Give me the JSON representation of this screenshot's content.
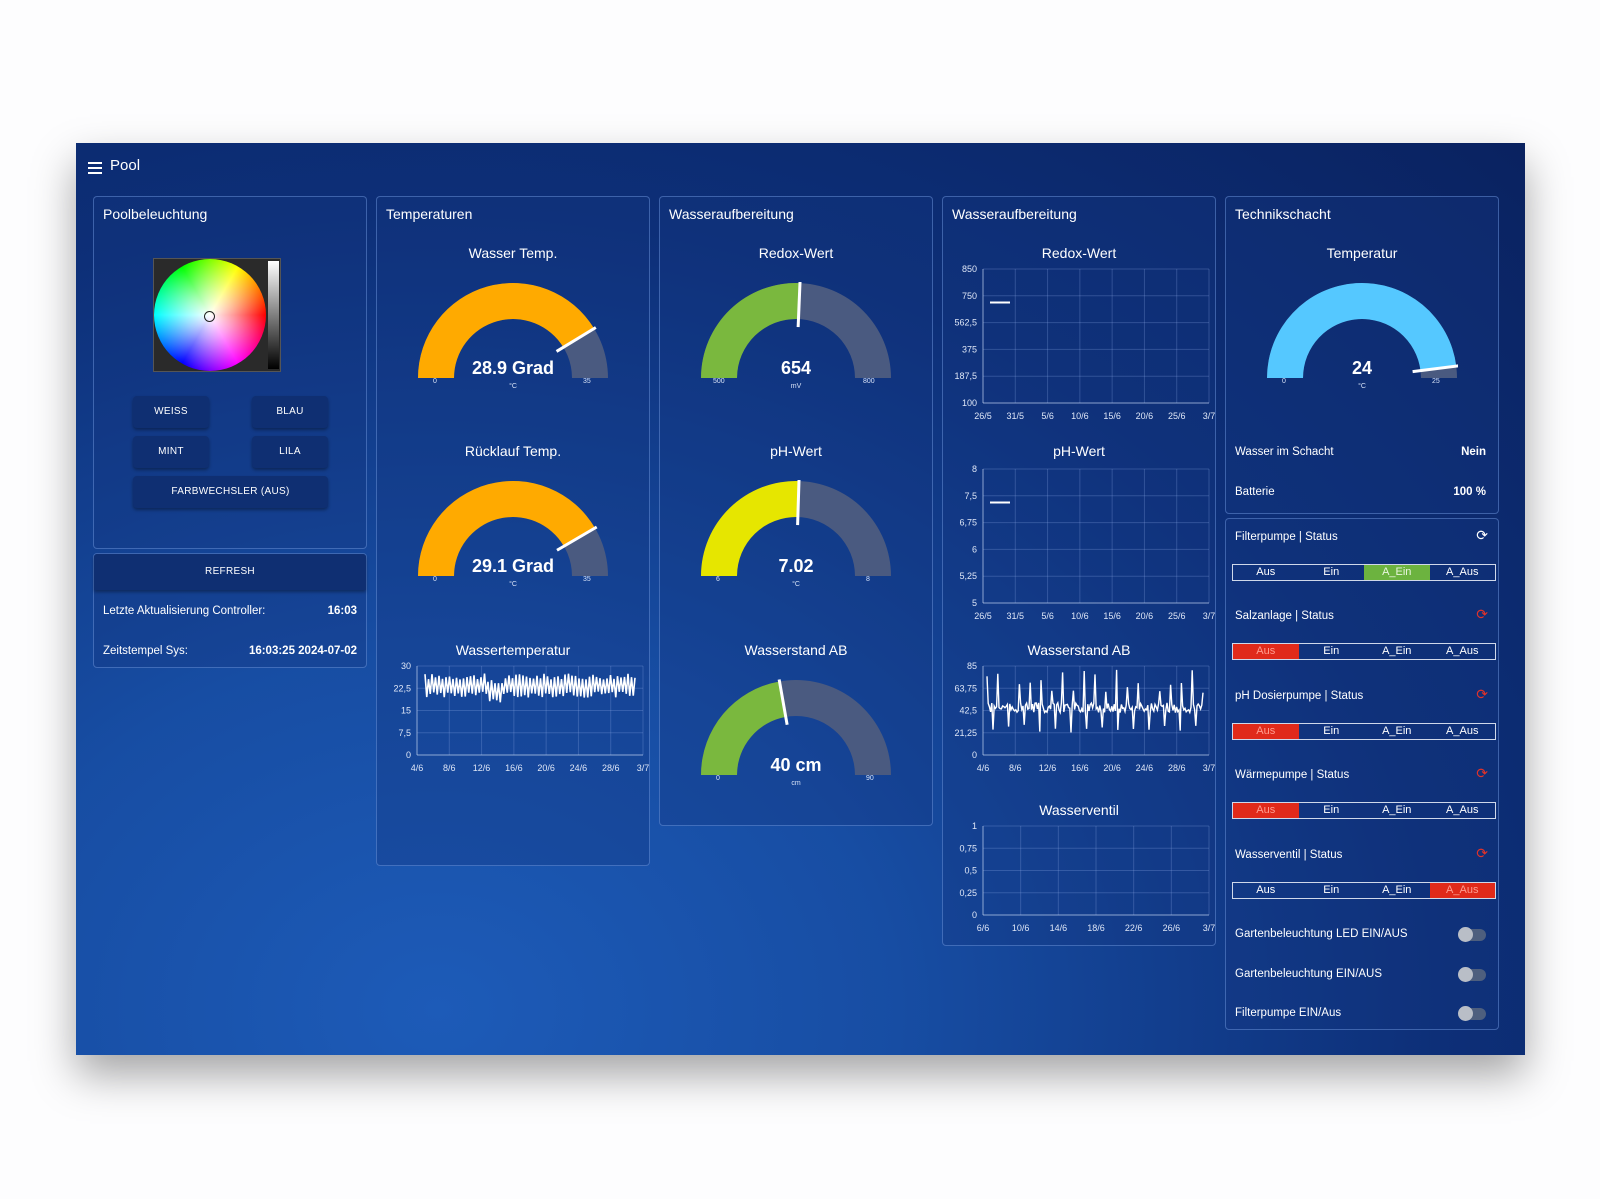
{
  "app": {
    "title": "Pool"
  },
  "poolbeleuchtung": {
    "title": "Poolbeleuchtung",
    "buttons": {
      "weiss": "WEISS",
      "blau": "BLAU",
      "mint": "MINT",
      "lila": "LILA",
      "farbwechsler": "FARBWECHSLER (AUS)"
    }
  },
  "refresh_card": {
    "button": "REFRESH",
    "controller_label": "Letzte Aktualisierung Controller:",
    "controller_value": "16:03",
    "sys_label": "Zeitstempel Sys:",
    "sys_value": "16:03:25 2024-07-02"
  },
  "temperaturen": {
    "title": "Temperaturen",
    "wasser": {
      "title": "Wasser Temp.",
      "value": "28.9 Grad",
      "unit": "°C",
      "min": "0",
      "max": "35",
      "level": 28.9,
      "color": "#ffaa00"
    },
    "ruecklauf": {
      "title": "Rücklauf Temp.",
      "value": "29.1 Grad",
      "unit": "°C",
      "min": "0",
      "max": "35",
      "level": 29.1,
      "color": "#ffaa00"
    },
    "chart": {
      "title": "Wassertemperatur",
      "yticks": [
        "30",
        "22,5",
        "15",
        "7,5",
        "0"
      ],
      "xticks": [
        "4/6",
        "8/6",
        "12/6",
        "16/6",
        "20/6",
        "24/6",
        "28/6",
        "3/7"
      ]
    }
  },
  "wasseraufbereitung1": {
    "title": "Wasseraufbereitung",
    "redox": {
      "title": "Redox-Wert",
      "value": "654",
      "unit": "mV",
      "min": "500",
      "max": "800",
      "level": 654,
      "color": "#7ab83e"
    },
    "ph": {
      "title": "pH-Wert",
      "value": "7.02",
      "unit": "°C",
      "min": "6",
      "max": "8",
      "level": 7.02,
      "color": "#e6e600"
    },
    "wasserstand": {
      "title": "Wasserstand AB",
      "value": "40 cm",
      "unit": "cm",
      "min": "0",
      "max": "90",
      "level": 40,
      "color": "#7ab83e"
    }
  },
  "wasseraufbereitung2": {
    "title": "Wasseraufbereitung",
    "redox_chart": {
      "title": "Redox-Wert",
      "yticks": [
        "850",
        "750",
        "562,5",
        "375",
        "187,5",
        "100"
      ],
      "xticks": [
        "26/5",
        "31/5",
        "5/6",
        "10/6",
        "15/6",
        "20/6",
        "25/6",
        "3/7"
      ]
    },
    "ph_chart": {
      "title": "pH-Wert",
      "yticks": [
        "8",
        "7,5",
        "6,75",
        "6",
        "5,25",
        "5"
      ],
      "xticks": [
        "26/5",
        "31/5",
        "5/6",
        "10/6",
        "15/6",
        "20/6",
        "25/6",
        "3/7"
      ]
    },
    "wasserstand_chart": {
      "title": "Wasserstand AB",
      "yticks": [
        "85",
        "63,75",
        "42,5",
        "21,25",
        "0"
      ],
      "xticks": [
        "4/6",
        "8/6",
        "12/6",
        "16/6",
        "20/6",
        "24/6",
        "28/6",
        "3/7"
      ]
    },
    "ventil_chart": {
      "title": "Wasserventil",
      "yticks": [
        "1",
        "0,75",
        "0,5",
        "0,25",
        "0"
      ],
      "xticks": [
        "6/6",
        "10/6",
        "14/6",
        "18/6",
        "22/6",
        "26/6",
        "3/7"
      ]
    }
  },
  "technikschacht": {
    "title": "Technikschacht",
    "temp": {
      "title": "Temperatur",
      "value": "24",
      "unit": "°C",
      "min": "0",
      "max": "25",
      "level": 24,
      "color": "#55c8ff"
    },
    "wasser_label": "Wasser im Schacht",
    "wasser_value": "Nein",
    "batterie_label": "Batterie",
    "batterie_value": "100 %"
  },
  "status": {
    "segments": [
      "Aus",
      "Ein",
      "A_Ein",
      "A_Aus"
    ],
    "filterpumpe": {
      "label": "Filterpumpe | Status",
      "active": 2,
      "color": "#6cb33f"
    },
    "salzanlage": {
      "label": "Salzanlage | Status",
      "active": 0,
      "color": "#e02a1a"
    },
    "ph_pumpe": {
      "label": "pH Dosierpumpe | Status",
      "active": 0,
      "color": "#e02a1a"
    },
    "waermepumpe": {
      "label": "Wärmepumpe | Status",
      "active": 0,
      "color": "#e02a1a"
    },
    "wasserventil": {
      "label": "Wasserventil | Status",
      "active": 3,
      "color": "#e02a1a"
    },
    "toggles": [
      "Gartenbeleuchtung LED EIN/AUS",
      "Gartenbeleuchtung EIN/AUS",
      "Filterpumpe EIN/Aus"
    ]
  }
}
